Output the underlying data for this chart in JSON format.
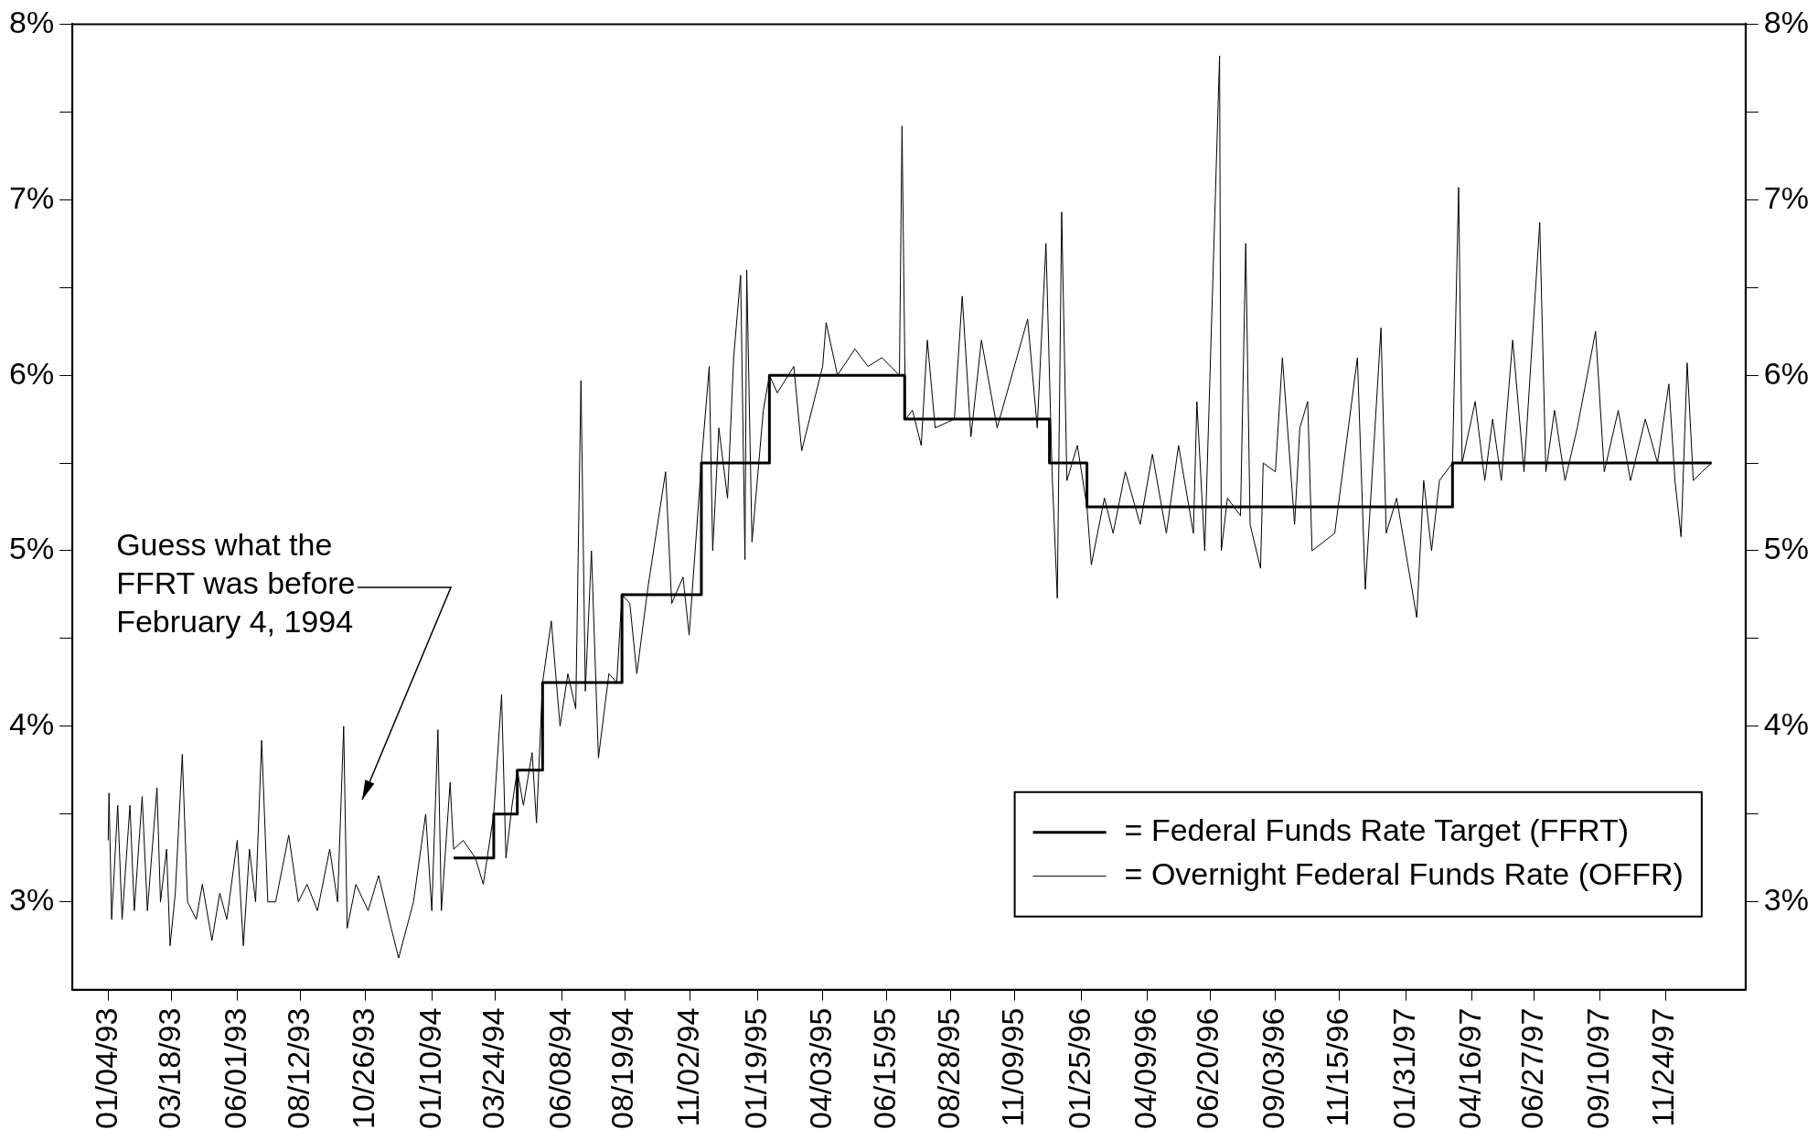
{
  "chart_data": {
    "type": "line",
    "xlim": [
      "1992-11-24",
      "1998-02-24"
    ],
    "xticks": [
      {
        "value": "1993-01-04",
        "label": "01/04/93"
      },
      {
        "value": "1993-03-18",
        "label": "03/18/93"
      },
      {
        "value": "1993-06-01",
        "label": "06/01/93"
      },
      {
        "value": "1993-08-12",
        "label": "08/12/93"
      },
      {
        "value": "1993-10-26",
        "label": "10/26/93"
      },
      {
        "value": "1994-01-10",
        "label": "01/10/94"
      },
      {
        "value": "1994-03-24",
        "label": "03/24/94"
      },
      {
        "value": "1994-06-08",
        "label": "06/08/94"
      },
      {
        "value": "1994-08-19",
        "label": "08/19/94"
      },
      {
        "value": "1994-11-02",
        "label": "11/02/94"
      },
      {
        "value": "1995-01-19",
        "label": "01/19/95"
      },
      {
        "value": "1995-04-03",
        "label": "04/03/95"
      },
      {
        "value": "1995-06-15",
        "label": "06/15/95"
      },
      {
        "value": "1995-08-28",
        "label": "08/28/95"
      },
      {
        "value": "1995-11-09",
        "label": "11/09/95"
      },
      {
        "value": "1996-01-25",
        "label": "01/25/96"
      },
      {
        "value": "1996-04-09",
        "label": "04/09/96"
      },
      {
        "value": "1996-06-20",
        "label": "06/20/96"
      },
      {
        "value": "1996-09-03",
        "label": "09/03/96"
      },
      {
        "value": "1996-11-15",
        "label": "11/15/96"
      },
      {
        "value": "1997-01-31",
        "label": "01/31/97"
      },
      {
        "value": "1997-04-16",
        "label": "04/16/97"
      },
      {
        "value": "1997-06-27",
        "label": "06/27/97"
      },
      {
        "value": "1997-09-10",
        "label": "09/10/97"
      },
      {
        "value": "1997-11-24",
        "label": "11/24/97"
      }
    ],
    "ylim": [
      2.5,
      8
    ],
    "yticks": [
      {
        "value": 3,
        "label": "3%"
      },
      {
        "value": 3.5,
        "label": null
      },
      {
        "value": 4,
        "label": "4%"
      },
      {
        "value": 4.5,
        "label": null
      },
      {
        "value": 5,
        "label": "5%"
      },
      {
        "value": 5.5,
        "label": null
      },
      {
        "value": 6,
        "label": "6%"
      },
      {
        "value": 6.5,
        "label": null
      },
      {
        "value": 7,
        "label": "7%"
      },
      {
        "value": 7.5,
        "label": null
      },
      {
        "value": 8,
        "label": "8%"
      }
    ],
    "y2lim": [
      2.5,
      8
    ],
    "y2ticks": [
      {
        "value": 3,
        "label": "3%"
      },
      {
        "value": 3.5,
        "label": null
      },
      {
        "value": 4,
        "label": "4%"
      },
      {
        "value": 4.5,
        "label": null
      },
      {
        "value": 5,
        "label": "5%"
      },
      {
        "value": 5.5,
        "label": null
      },
      {
        "value": 6,
        "label": "6%"
      },
      {
        "value": 6.5,
        "label": null
      },
      {
        "value": 7,
        "label": "7%"
      },
      {
        "value": 7.5,
        "label": null
      },
      {
        "value": 8,
        "label": "8%"
      }
    ],
    "legend": "bottom right",
    "marker": "none",
    "annotations": [
      "Guess what the\nFFRT was before\nFebruary 4, 1994"
    ],
    "series": [
      {
        "name": "= Federal Funds Rate Target (FFRT)",
        "type": "step",
        "color": "#000000",
        "x": [
          "1994-02-04",
          "1994-03-22",
          "1994-04-18",
          "1994-05-17",
          "1994-08-16",
          "1994-11-15",
          "1995-02-01",
          "1995-07-06",
          "1995-12-19",
          "1996-01-31",
          "1997-03-25",
          "1998-01-16"
        ],
        "values": [
          3.25,
          3.5,
          3.75,
          4.25,
          4.75,
          5.5,
          6.0,
          5.75,
          5.5,
          5.25,
          5.5,
          5.5
        ]
      },
      {
        "name": "= Overnight Federal Funds Rate (OFFR)",
        "type": "line",
        "color": "#000000",
        "x": [
          "1993-01-04",
          "1993-01-05",
          "1993-01-08",
          "1993-01-15",
          "1993-01-20",
          "1993-01-29",
          "1993-02-03",
          "1993-02-12",
          "1993-02-18",
          "1993-03-01",
          "1993-03-05",
          "1993-03-12",
          "1993-03-16",
          "1993-03-22",
          "1993-03-30",
          "1993-04-05",
          "1993-04-15",
          "1993-04-22",
          "1993-05-03",
          "1993-05-12",
          "1993-05-20",
          "1993-06-01",
          "1993-06-08",
          "1993-06-15",
          "1993-06-22",
          "1993-06-29",
          "1993-07-06",
          "1993-07-15",
          "1993-07-30",
          "1993-08-10",
          "1993-08-20",
          "1993-09-01",
          "1993-09-15",
          "1993-09-24",
          "1993-10-01",
          "1993-10-05",
          "1993-10-15",
          "1993-10-29",
          "1993-11-10",
          "1993-11-22",
          "1993-12-03",
          "1993-12-20",
          "1994-01-03",
          "1994-01-10",
          "1994-01-17",
          "1994-01-21",
          "1994-01-31",
          "1994-02-04",
          "1994-02-15",
          "1994-03-01",
          "1994-03-10",
          "1994-03-22",
          "1994-03-31",
          "1994-04-05",
          "1994-04-12",
          "1994-04-18",
          "1994-04-25",
          "1994-05-05",
          "1994-05-10",
          "1994-05-17",
          "1994-05-27",
          "1994-06-06",
          "1994-06-15",
          "1994-06-24",
          "1994-06-30",
          "1994-07-05",
          "1994-07-12",
          "1994-07-20",
          "1994-08-01",
          "1994-08-10",
          "1994-08-16",
          "1994-08-25",
          "1994-09-02",
          "1994-09-15",
          "1994-10-05",
          "1994-10-12",
          "1994-10-25",
          "1994-11-01",
          "1994-11-15",
          "1994-11-24",
          "1994-11-28",
          "1994-12-05",
          "1994-12-15",
          "1994-12-22",
          "1994-12-30",
          "1995-01-04",
          "1995-01-06",
          "1995-01-12",
          "1995-01-25",
          "1995-02-01",
          "1995-02-10",
          "1995-03-01",
          "1995-03-10",
          "1995-04-03",
          "1995-04-07",
          "1995-04-20",
          "1995-05-10",
          "1995-05-25",
          "1995-06-10",
          "1995-06-30",
          "1995-07-03",
          "1995-07-07",
          "1995-07-15",
          "1995-07-25",
          "1995-08-01",
          "1995-08-10",
          "1995-09-01",
          "1995-09-10",
          "1995-09-20",
          "1995-10-02",
          "1995-10-20",
          "1995-11-24",
          "1995-12-05",
          "1995-12-15",
          "1995-12-22",
          "1995-12-28",
          "1996-01-02",
          "1996-01-08",
          "1996-01-20",
          "1996-01-31",
          "1996-02-05",
          "1996-02-20",
          "1996-03-01",
          "1996-03-15",
          "1996-04-01",
          "1996-04-15",
          "1996-05-01",
          "1996-05-15",
          "1996-06-01",
          "1996-06-05",
          "1996-06-14",
          "1996-07-01",
          "1996-07-03",
          "1996-07-10",
          "1996-07-25",
          "1996-07-31",
          "1996-08-05",
          "1996-08-17",
          "1996-08-20",
          "1996-09-03",
          "1996-09-11",
          "1996-09-25",
          "1996-10-01",
          "1996-10-10",
          "1996-10-15",
          "1996-11-10",
          "1996-12-06",
          "1996-12-15",
          "1997-01-02",
          "1997-01-08",
          "1997-01-20",
          "1997-02-12",
          "1997-02-20",
          "1997-03-01",
          "1997-03-10",
          "1997-03-25",
          "1997-04-01",
          "1997-04-05",
          "1997-04-20",
          "1997-05-01",
          "1997-05-10",
          "1997-05-20",
          "1997-06-02",
          "1997-06-15",
          "1997-07-03",
          "1997-07-10",
          "1997-07-20",
          "1997-08-01",
          "1997-08-15",
          "1997-09-05",
          "1997-09-15",
          "1997-10-01",
          "1997-10-15",
          "1997-11-01",
          "1997-11-15",
          "1997-11-28",
          "1997-12-05",
          "1997-12-12",
          "1997-12-19",
          "1997-12-26",
          "1998-01-05",
          "1998-01-16"
        ],
        "values": [
          3.35,
          3.62,
          2.9,
          3.55,
          2.9,
          3.55,
          2.95,
          3.6,
          2.95,
          3.65,
          3.0,
          3.3,
          2.75,
          3.05,
          3.84,
          3.0,
          2.9,
          3.1,
          2.78,
          3.05,
          2.9,
          3.35,
          2.75,
          3.3,
          3.0,
          3.92,
          3.0,
          3.0,
          3.38,
          3.0,
          3.1,
          2.95,
          3.3,
          3.0,
          4.0,
          2.85,
          3.1,
          2.95,
          3.15,
          2.9,
          2.68,
          3.0,
          3.5,
          2.95,
          3.98,
          2.95,
          3.68,
          3.3,
          3.35,
          3.25,
          3.1,
          3.5,
          4.18,
          3.25,
          3.55,
          3.75,
          3.55,
          3.85,
          3.45,
          4.25,
          4.6,
          4.0,
          4.3,
          4.1,
          5.97,
          4.2,
          5.0,
          3.82,
          4.3,
          4.25,
          4.75,
          4.7,
          4.3,
          4.8,
          5.45,
          4.7,
          4.85,
          4.52,
          5.5,
          6.05,
          5.0,
          5.7,
          5.3,
          6.1,
          6.57,
          4.95,
          6.6,
          5.05,
          5.8,
          6.0,
          5.9,
          6.05,
          5.57,
          6.05,
          6.3,
          6.0,
          6.15,
          6.05,
          6.1,
          6.0,
          7.42,
          5.75,
          5.8,
          5.6,
          6.2,
          5.7,
          5.75,
          6.45,
          5.65,
          6.2,
          5.7,
          6.32,
          5.7,
          6.75,
          5.45,
          4.73,
          6.93,
          5.4,
          5.6,
          5.25,
          4.92,
          5.3,
          5.1,
          5.45,
          5.15,
          5.55,
          5.1,
          5.6,
          5.1,
          5.85,
          5.0,
          7.82,
          5.0,
          5.3,
          5.2,
          6.75,
          5.15,
          4.9,
          5.5,
          5.45,
          6.1,
          5.15,
          5.7,
          5.85,
          5.0,
          5.1,
          6.1,
          4.78,
          6.27,
          5.1,
          5.3,
          4.62,
          5.4,
          5.0,
          5.4,
          5.5,
          7.07,
          5.5,
          5.85,
          5.4,
          5.75,
          5.4,
          6.2,
          5.45,
          6.87,
          5.45,
          5.8,
          5.4,
          5.7,
          6.25,
          5.45,
          5.8,
          5.4,
          5.75,
          5.5,
          5.95,
          5.4,
          5.08,
          6.07,
          5.4,
          5.45,
          5.5
        ]
      }
    ]
  }
}
